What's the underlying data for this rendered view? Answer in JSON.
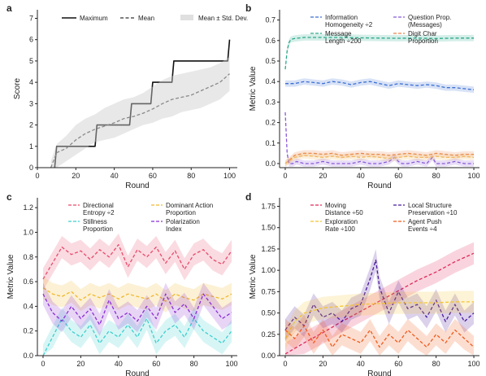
{
  "chart_data": [
    {
      "panel": "a",
      "type": "line",
      "xlabel": "Round",
      "ylabel": "Score",
      "xlim": [
        0,
        104
      ],
      "ylim": [
        0,
        7.4
      ],
      "xticks": [
        0,
        20,
        40,
        60,
        80,
        100
      ],
      "yticks": [
        0,
        1,
        2,
        3,
        4,
        5,
        6,
        7
      ],
      "legend_position": "top",
      "series": [
        {
          "name": "Maximum",
          "style": "solid",
          "color": "#111111",
          "x": [
            9,
            10,
            18,
            19,
            30,
            31,
            48,
            49,
            59,
            60,
            70,
            71,
            90,
            91,
            99,
            100
          ],
          "y": [
            0,
            1,
            1,
            1,
            1,
            2,
            2,
            3,
            3,
            4,
            4,
            5,
            5,
            5,
            5,
            6
          ]
        },
        {
          "name": "Mean",
          "style": "dashed",
          "color": "#555555",
          "x": [
            7,
            10,
            15,
            20,
            25,
            30,
            35,
            40,
            45,
            50,
            55,
            60,
            65,
            70,
            75,
            80,
            85,
            90,
            95,
            100
          ],
          "y": [
            0.0,
            0.7,
            0.9,
            1.3,
            1.6,
            1.8,
            1.95,
            2.1,
            2.3,
            2.4,
            2.55,
            2.75,
            3.0,
            3.2,
            3.3,
            3.4,
            3.6,
            3.8,
            4.0,
            4.4
          ]
        },
        {
          "name": "Mean ± Std. Dev.",
          "type": "band",
          "color": "#cccccc",
          "x": [
            7,
            10,
            15,
            20,
            25,
            30,
            35,
            40,
            45,
            50,
            55,
            60,
            65,
            70,
            75,
            80,
            85,
            90,
            95,
            100
          ],
          "lower": [
            0.0,
            0.0,
            0.3,
            0.6,
            0.9,
            1.2,
            1.3,
            1.4,
            1.6,
            1.8,
            2.0,
            2.1,
            2.3,
            2.4,
            2.6,
            2.7,
            2.8,
            3.0,
            3.2,
            3.6
          ],
          "upper": [
            0.3,
            1.1,
            1.5,
            2.0,
            2.3,
            2.5,
            2.8,
            3.0,
            3.2,
            3.3,
            3.5,
            3.8,
            4.1,
            4.3,
            4.4,
            4.5,
            4.6,
            4.7,
            4.9,
            5.2
          ]
        }
      ]
    },
    {
      "panel": "b",
      "type": "line",
      "xlabel": "Round",
      "ylabel": "Metric Value",
      "xlim": [
        -3,
        103
      ],
      "ylim": [
        -0.02,
        0.75
      ],
      "xticks": [
        0,
        20,
        40,
        60,
        80,
        100
      ],
      "yticks": [
        0.0,
        0.1,
        0.2,
        0.3,
        0.4,
        0.5,
        0.6,
        0.7
      ],
      "legend_position": "top",
      "series": [
        {
          "name": "Information Homogeneity ÷2",
          "label_lines": [
            "Information",
            "Homogeneity ÷2"
          ],
          "color": "#3b6fd4",
          "x": [
            0,
            5,
            10,
            15,
            20,
            25,
            30,
            35,
            40,
            45,
            50,
            55,
            60,
            65,
            70,
            75,
            80,
            85,
            90,
            95,
            100
          ],
          "y": [
            0.39,
            0.39,
            0.4,
            0.395,
            0.39,
            0.4,
            0.395,
            0.385,
            0.395,
            0.4,
            0.39,
            0.38,
            0.39,
            0.385,
            0.38,
            0.385,
            0.38,
            0.37,
            0.37,
            0.365,
            0.36
          ]
        },
        {
          "name": "Question Prop. (Messages)",
          "label_lines": [
            "Question Prop.",
            "(Messages)"
          ],
          "color": "#8a5ad8",
          "x": [
            0,
            1,
            2,
            4,
            6,
            10,
            15,
            20,
            25,
            30,
            35,
            40,
            45,
            50,
            55,
            58,
            60,
            62,
            65,
            70,
            75,
            78,
            80,
            85,
            90,
            95,
            100
          ],
          "y": [
            0.25,
            0.05,
            0.0,
            0.0,
            0.01,
            0.0,
            0.0,
            0.01,
            0.0,
            0.0,
            0.0,
            0.01,
            0.0,
            0.0,
            0.01,
            0.03,
            0.01,
            0.0,
            0.0,
            0.01,
            0.0,
            0.03,
            0.0,
            0.0,
            0.01,
            0.0,
            0.0
          ]
        },
        {
          "name": "Message Length ÷200",
          "label_lines": [
            "Message",
            "Length ÷200"
          ],
          "color": "#2aa88a",
          "x": [
            0,
            1,
            2,
            3,
            5,
            10,
            20,
            30,
            40,
            50,
            60,
            70,
            80,
            90,
            100
          ],
          "y": [
            0.46,
            0.55,
            0.59,
            0.605,
            0.61,
            0.615,
            0.615,
            0.615,
            0.613,
            0.612,
            0.611,
            0.612,
            0.61,
            0.612,
            0.612
          ]
        },
        {
          "name": "Digit Char Proportion",
          "label_lines": [
            "Digit Char",
            "Proportion"
          ],
          "color": "#e8834a",
          "x": [
            0,
            5,
            10,
            15,
            20,
            25,
            30,
            35,
            40,
            45,
            50,
            55,
            60,
            65,
            70,
            75,
            80,
            85,
            90,
            95,
            100
          ],
          "y": [
            0.0,
            0.04,
            0.05,
            0.05,
            0.045,
            0.05,
            0.04,
            0.045,
            0.05,
            0.045,
            0.045,
            0.04,
            0.045,
            0.05,
            0.045,
            0.04,
            0.05,
            0.045,
            0.04,
            0.045,
            0.045
          ]
        },
        {
          "name": "",
          "color": "#f0b860",
          "x": [
            0,
            5,
            10,
            15,
            20,
            25,
            30,
            35,
            40,
            45,
            50,
            55,
            60,
            65,
            70,
            75,
            80,
            85,
            90,
            95,
            100
          ],
          "y": [
            0.0,
            0.03,
            0.04,
            0.035,
            0.03,
            0.035,
            0.03,
            0.035,
            0.03,
            0.035,
            0.03,
            0.025,
            0.03,
            0.035,
            0.03,
            0.03,
            0.035,
            0.03,
            0.03,
            0.035,
            0.03
          ]
        }
      ]
    },
    {
      "panel": "c",
      "type": "line",
      "xlabel": "Round",
      "ylabel": "Metric Value",
      "xlim": [
        -3,
        103
      ],
      "ylim": [
        0.0,
        1.28
      ],
      "xticks": [
        0,
        20,
        40,
        60,
        80,
        100
      ],
      "yticks": [
        0.0,
        0.2,
        0.4,
        0.6,
        0.8,
        1.0,
        1.2
      ],
      "legend_position": "top",
      "series": [
        {
          "name": "Directional Entropy ÷2",
          "label_lines": [
            "Directional",
            "Entropy ÷2"
          ],
          "color": "#e84a6a",
          "x": [
            0,
            5,
            10,
            15,
            20,
            25,
            30,
            35,
            40,
            45,
            50,
            55,
            60,
            65,
            70,
            75,
            80,
            85,
            90,
            95,
            100
          ],
          "y": [
            0.62,
            0.75,
            0.88,
            0.82,
            0.85,
            0.78,
            0.86,
            0.8,
            0.9,
            0.72,
            0.86,
            0.8,
            0.88,
            0.75,
            0.85,
            0.7,
            0.82,
            0.86,
            0.78,
            0.74,
            0.85
          ]
        },
        {
          "name": "Dominant Action Proportion",
          "label_lines": [
            "Dominant Action",
            "Proportion"
          ],
          "color": "#f2b82e",
          "x": [
            0,
            5,
            10,
            15,
            20,
            25,
            30,
            35,
            40,
            45,
            50,
            55,
            60,
            65,
            70,
            75,
            80,
            85,
            90,
            95,
            100
          ],
          "y": [
            0.55,
            0.5,
            0.48,
            0.52,
            0.45,
            0.5,
            0.47,
            0.5,
            0.46,
            0.5,
            0.48,
            0.46,
            0.5,
            0.44,
            0.5,
            0.47,
            0.45,
            0.5,
            0.48,
            0.46,
            0.5
          ]
        },
        {
          "name": "Stillness Proportion",
          "label_lines": [
            "Stillness",
            "Proportion"
          ],
          "color": "#3ccfcf",
          "x": [
            0,
            5,
            10,
            15,
            20,
            25,
            30,
            35,
            40,
            45,
            50,
            55,
            60,
            65,
            70,
            75,
            80,
            85,
            90,
            95,
            100
          ],
          "y": [
            0.0,
            0.15,
            0.3,
            0.2,
            0.15,
            0.25,
            0.1,
            0.2,
            0.15,
            0.25,
            0.15,
            0.3,
            0.1,
            0.2,
            0.25,
            0.15,
            0.3,
            0.2,
            0.15,
            0.1,
            0.2
          ]
        },
        {
          "name": "Polarization Index",
          "label_lines": [
            "Polarization",
            "Index"
          ],
          "color": "#8a2fd4",
          "x": [
            0,
            5,
            10,
            15,
            20,
            25,
            30,
            35,
            40,
            45,
            50,
            55,
            60,
            65,
            70,
            75,
            80,
            85,
            90,
            95,
            100
          ],
          "y": [
            0.5,
            0.35,
            0.28,
            0.4,
            0.3,
            0.38,
            0.25,
            0.45,
            0.3,
            0.35,
            0.28,
            0.4,
            0.3,
            0.5,
            0.35,
            0.42,
            0.3,
            0.5,
            0.4,
            0.3,
            0.35
          ]
        }
      ]
    },
    {
      "panel": "d",
      "type": "line",
      "xlabel": "Round",
      "ylabel": "Metric Value",
      "xlim": [
        -3,
        103
      ],
      "ylim": [
        0.0,
        1.85
      ],
      "xticks": [
        0,
        20,
        40,
        60,
        80,
        100
      ],
      "yticks": [
        0.0,
        0.25,
        0.5,
        0.75,
        1.0,
        1.25,
        1.5,
        1.75
      ],
      "legend_position": "top",
      "series": [
        {
          "name": "Moving Distance ÷50",
          "label_lines": [
            "Moving",
            "Distance ÷50"
          ],
          "color": "#e0295a",
          "x": [
            0,
            10,
            20,
            30,
            40,
            50,
            60,
            70,
            80,
            90,
            100
          ],
          "y": [
            0.02,
            0.15,
            0.27,
            0.4,
            0.52,
            0.64,
            0.76,
            0.88,
            0.98,
            1.1,
            1.2
          ]
        },
        {
          "name": "Local Structure Preservation ÷10",
          "label_lines": [
            "Local Structure",
            "Preservation ÷10"
          ],
          "color": "#4a1a9a",
          "x": [
            0,
            5,
            10,
            15,
            20,
            25,
            30,
            35,
            40,
            45,
            48,
            50,
            55,
            60,
            65,
            70,
            75,
            80,
            85,
            90,
            95,
            100
          ],
          "y": [
            0.3,
            0.45,
            0.35,
            0.6,
            0.45,
            0.5,
            0.4,
            0.55,
            0.6,
            0.9,
            1.12,
            0.8,
            0.5,
            0.75,
            0.55,
            0.6,
            0.45,
            0.65,
            0.4,
            0.6,
            0.4,
            0.5
          ]
        },
        {
          "name": "Exploration Rate ÷100",
          "label_lines": [
            "Exploration",
            "Rate ÷100"
          ],
          "color": "#f5c430",
          "x": [
            0,
            5,
            10,
            20,
            30,
            40,
            50,
            60,
            70,
            80,
            90,
            100
          ],
          "y": [
            0.2,
            0.4,
            0.5,
            0.56,
            0.58,
            0.6,
            0.61,
            0.62,
            0.62,
            0.62,
            0.63,
            0.63
          ]
        },
        {
          "name": "Agent Push Events ÷4",
          "label_lines": [
            "Agent Push",
            "Events ÷4"
          ],
          "color": "#f05a1a",
          "x": [
            0,
            5,
            10,
            15,
            20,
            25,
            30,
            35,
            40,
            45,
            50,
            55,
            60,
            65,
            70,
            75,
            80,
            85,
            90,
            95,
            100
          ],
          "y": [
            0.3,
            0.2,
            0.35,
            0.15,
            0.3,
            0.1,
            0.25,
            0.2,
            0.15,
            0.3,
            0.1,
            0.25,
            0.15,
            0.3,
            0.2,
            0.1,
            0.25,
            0.15,
            0.3,
            0.2,
            0.1
          ]
        }
      ]
    }
  ]
}
